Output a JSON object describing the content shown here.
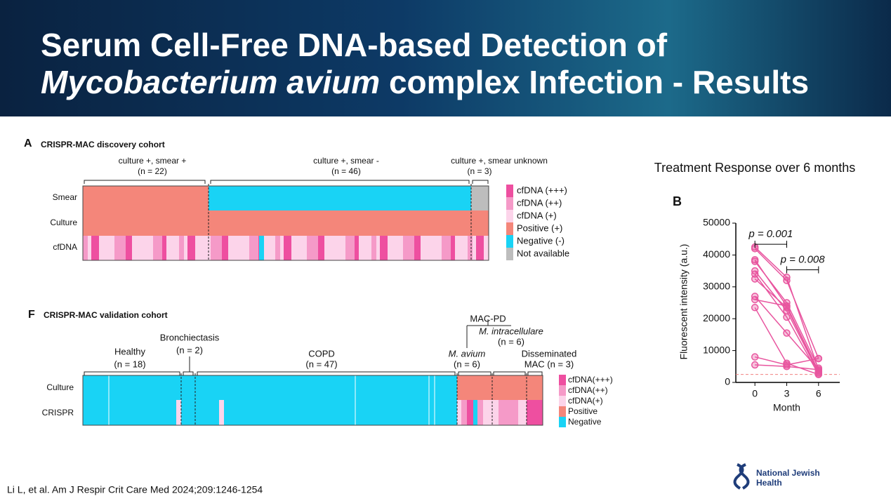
{
  "header": {
    "title_line1": "Serum Cell-Free DNA-based Detection of",
    "title_italic": "Mycobacterium avium",
    "title_rest": "complex Infection - Results"
  },
  "panel_a": {
    "letter": "A",
    "title": "CRISPR-MAC discovery cohort",
    "groups": [
      {
        "label": "culture +, smear +",
        "n": "(n = 22)"
      },
      {
        "label": "culture +, smear -",
        "n": "(n = 46)"
      },
      {
        "label": "culture +, smear unknown",
        "n": "(n = 3)"
      }
    ],
    "rows": [
      "Smear",
      "Culture",
      "cfDNA"
    ],
    "legend": [
      "cfDNA (+++)",
      "cfDNA (++)",
      "cfDNA (+)",
      "Positive (+)",
      "Negative (-)",
      "Not available"
    ]
  },
  "panel_f": {
    "letter": "F",
    "title": "CRISPR-MAC validation cohort",
    "groups": [
      {
        "label": "Healthy",
        "n": "(n = 18)"
      },
      {
        "label": "Bronchiectasis",
        "n": "(n = 2)"
      },
      {
        "label": "COPD",
        "n": "(n = 47)"
      },
      {
        "label": "M. avium",
        "n": "(n = 6)"
      },
      {
        "label": "M. intracellulare",
        "n": "(n = 6)"
      },
      {
        "label": "Disseminated",
        "n": "MAC (n = 3)"
      }
    ],
    "parent": "MAC-PD",
    "rows": [
      "Culture",
      "CRISPR"
    ],
    "legend": [
      "cfDNA(+++)",
      "cfDNA(++)",
      "cfDNA(+)",
      "Positive",
      "Negative"
    ]
  },
  "chart_data": {
    "type": "line",
    "title": "Treatment Response over 6 months",
    "letter": "B",
    "x_label": "Month",
    "y_label": "Fluorescent intensity (a.u.)",
    "x": [
      0,
      3,
      6
    ],
    "xlim": [
      -1.8,
      8
    ],
    "xticks": [
      0,
      3,
      6
    ],
    "ylim": [
      0,
      50000
    ],
    "yticks": [
      0,
      10000,
      20000,
      30000,
      40000,
      50000
    ],
    "color": "#e8559f",
    "series": [
      {
        "values": [
          42500,
          33000,
          4000
        ]
      },
      {
        "values": [
          42000,
          32000,
          7500
        ]
      },
      {
        "values": [
          38500,
          24000,
          3500
        ]
      },
      {
        "values": [
          38000,
          25000,
          4500
        ]
      },
      {
        "values": [
          35000,
          22500,
          3000
        ]
      },
      {
        "values": [
          34000,
          20500,
          2500
        ]
      },
      {
        "values": [
          32500,
          23500,
          3500
        ]
      },
      {
        "values": [
          27000,
          15500,
          4000
        ]
      },
      {
        "values": [
          26000,
          24000,
          3000
        ]
      },
      {
        "values": [
          23500,
          6000,
          2500
        ]
      },
      {
        "values": [
          8000,
          5500,
          7500
        ]
      },
      {
        "values": [
          5500,
          5000,
          4000
        ]
      }
    ],
    "threshold": 2500,
    "annotations": [
      {
        "text": "p = 0.001",
        "x": [
          0,
          3
        ],
        "y": 46000
      },
      {
        "text": "p = 0.008",
        "x": [
          3,
          6
        ],
        "y": 38000
      }
    ]
  },
  "citation": "Li L, et al. Am J Respir Crit Care Med 2024;209:1246-1254",
  "logo": [
    "National Jewish",
    "Health"
  ]
}
